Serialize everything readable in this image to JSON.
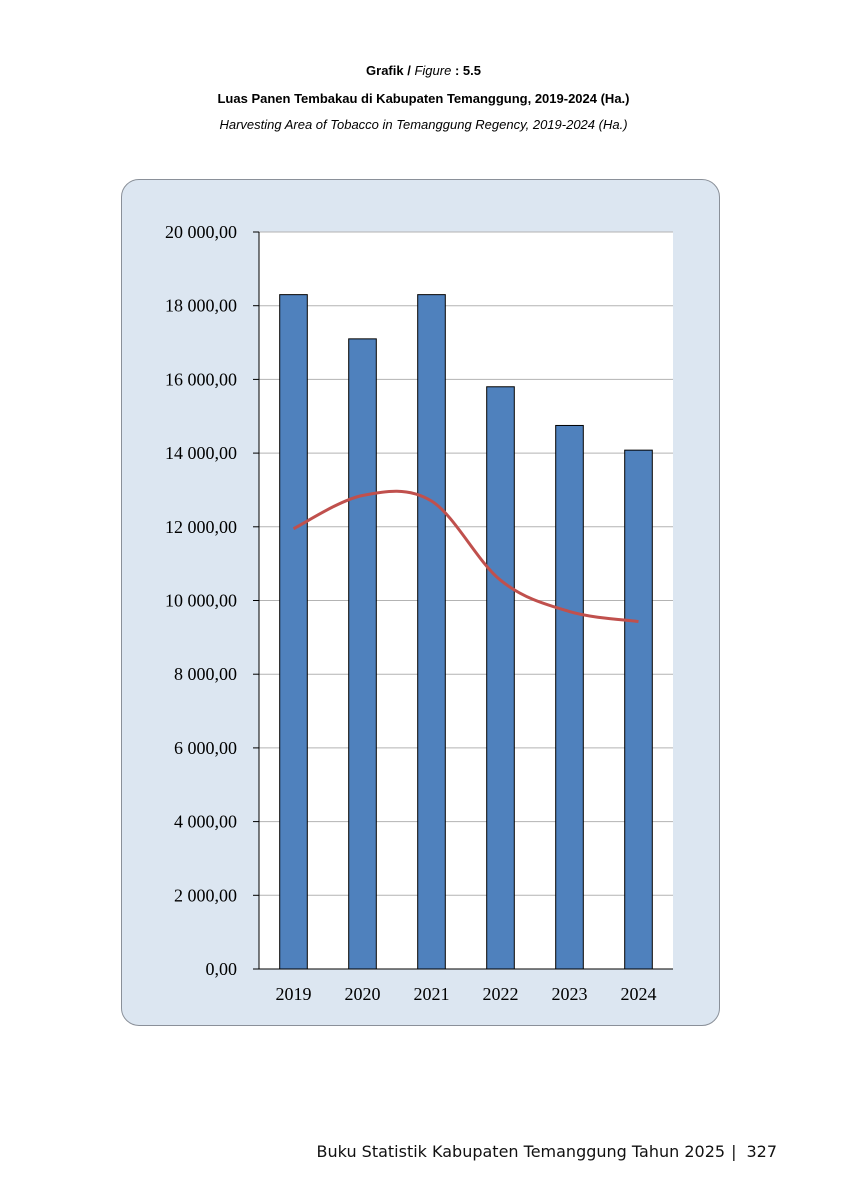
{
  "header": {
    "label": "Grafik /",
    "label_en": "Figure",
    "number": ": 5.5",
    "title": "Luas Panen Tembakau di Kabupaten Temanggung, 2019-2024 (Ha.)",
    "subtitle": "Harvesting Area of Tobacco in Temanggung Regency, 2019-2024 (Ha.)"
  },
  "chart_data": {
    "type": "bar",
    "categories": [
      "2019",
      "2020",
      "2021",
      "2022",
      "2023",
      "2024"
    ],
    "series": [
      {
        "type": "bar",
        "values": [
          18300,
          17100,
          18300,
          15800,
          14750,
          14080
        ],
        "color": "#4f81bd"
      },
      {
        "type": "line",
        "values": [
          11950,
          12850,
          12700,
          10550,
          9700,
          9430
        ],
        "color": "#c0504d"
      }
    ],
    "ylim": [
      0,
      20000
    ],
    "yticks": [
      0,
      2000,
      4000,
      6000,
      8000,
      10000,
      12000,
      14000,
      16000,
      18000,
      20000
    ],
    "ytick_labels": [
      "0,00",
      "2 000,00",
      "4 000,00",
      "6 000,00",
      "8 000,00",
      "10 000,00",
      "12 000,00",
      "14 000,00",
      "16 000,00",
      "18 000,00",
      "20 000,00"
    ],
    "grid": true,
    "legend": "none"
  },
  "footer": {
    "text": "Buku Statistik Kabupaten Temanggung Tahun 2025",
    "page": "327"
  }
}
